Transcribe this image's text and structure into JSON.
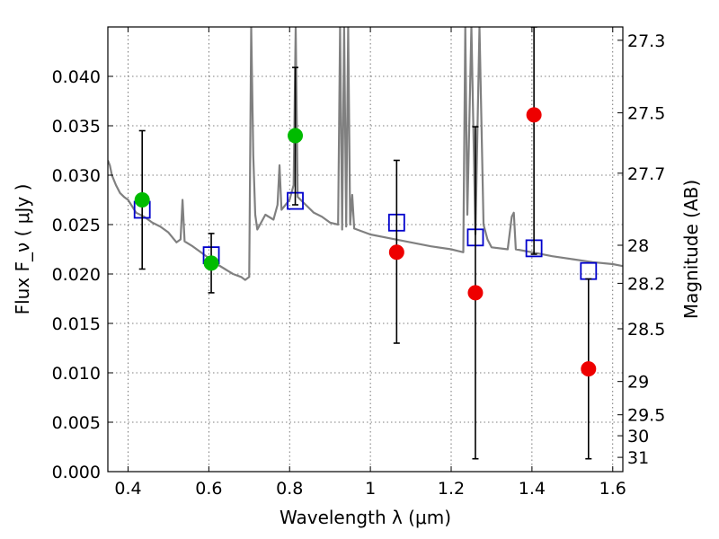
{
  "chart_data": {
    "type": "scatter",
    "xlabel": "Wavelength  λ (μm)",
    "ylabel": "Flux  F_ν  ( μJy )",
    "y2label": "Magnitude (AB)",
    "xlim": [
      0.35,
      1.625
    ],
    "ylim": [
      0.0,
      0.045
    ],
    "grid": true,
    "x_ticks": [
      0.4,
      0.6,
      0.8,
      1.0,
      1.2,
      1.4,
      1.6
    ],
    "x_tick_labels": [
      "0.4",
      "0.6",
      "0.8",
      "1",
      "1.2",
      "1.4",
      "1.6"
    ],
    "y_ticks": [
      0.0,
      0.005,
      0.01,
      0.015,
      0.02,
      0.025,
      0.03,
      0.035,
      0.04
    ],
    "y_tick_labels": [
      "0.000",
      "0.005",
      "0.010",
      "0.015",
      "0.020",
      "0.025",
      "0.030",
      "0.035",
      "0.040"
    ],
    "mag_ticks": [
      27.3,
      27.5,
      27.7,
      28,
      28.2,
      28.5,
      29,
      29.5,
      30,
      31
    ],
    "mag_tick_labels": [
      "27.3",
      "27.5",
      "27.7",
      "28",
      "28.2",
      "28.5",
      "29",
      "29.5",
      "30",
      "31"
    ],
    "colors": {
      "spectrum": "#808080",
      "model": "#0000cc",
      "detected": "#00bb00",
      "nondetected": "#ee0000",
      "errorbar": "#000000",
      "grid": "#555555"
    },
    "spectrum": {
      "x": [
        0.35,
        0.355,
        0.36,
        0.37,
        0.38,
        0.39,
        0.4,
        0.42,
        0.44,
        0.46,
        0.48,
        0.5,
        0.52,
        0.53,
        0.535,
        0.54,
        0.56,
        0.58,
        0.6,
        0.62,
        0.64,
        0.66,
        0.68,
        0.69,
        0.7,
        0.705,
        0.71,
        0.715,
        0.72,
        0.74,
        0.76,
        0.77,
        0.775,
        0.78,
        0.8,
        0.81,
        0.815,
        0.82,
        0.84,
        0.86,
        0.88,
        0.9,
        0.92,
        0.925,
        0.93,
        0.935,
        0.94,
        0.945,
        0.95,
        0.955,
        0.96,
        1.0,
        1.05,
        1.1,
        1.15,
        1.2,
        1.23,
        1.235,
        1.24,
        1.25,
        1.26,
        1.27,
        1.28,
        1.29,
        1.3,
        1.34,
        1.35,
        1.355,
        1.36,
        1.4,
        1.45,
        1.5,
        1.55,
        1.6,
        1.625
      ],
      "y": [
        0.0315,
        0.031,
        0.03,
        0.029,
        0.0282,
        0.0278,
        0.0275,
        0.0262,
        0.0258,
        0.0252,
        0.0248,
        0.0242,
        0.0232,
        0.0235,
        0.0275,
        0.0233,
        0.0228,
        0.0222,
        0.0216,
        0.021,
        0.0205,
        0.02,
        0.0197,
        0.0194,
        0.0197,
        0.045,
        0.032,
        0.026,
        0.0245,
        0.026,
        0.0255,
        0.027,
        0.031,
        0.0265,
        0.0275,
        0.029,
        0.045,
        0.0278,
        0.027,
        0.0262,
        0.0258,
        0.0252,
        0.025,
        0.045,
        0.0245,
        0.045,
        0.0248,
        0.045,
        0.025,
        0.028,
        0.0246,
        0.024,
        0.0236,
        0.0232,
        0.0228,
        0.0225,
        0.0222,
        0.045,
        0.026,
        0.045,
        0.024,
        0.045,
        0.025,
        0.0235,
        0.0227,
        0.0225,
        0.0258,
        0.0262,
        0.0225,
        0.0222,
        0.0218,
        0.0215,
        0.0212,
        0.021,
        0.0208
      ]
    },
    "series": [
      {
        "marker": "square",
        "points": [
          {
            "x": 0.435,
            "y": 0.0265
          },
          {
            "x": 0.606,
            "y": 0.0219
          },
          {
            "x": 0.814,
            "y": 0.0274
          },
          {
            "x": 1.065,
            "y": 0.0252
          },
          {
            "x": 1.26,
            "y": 0.0237
          },
          {
            "x": 1.405,
            "y": 0.0226
          },
          {
            "x": 1.54,
            "y": 0.0203
          }
        ]
      },
      {
        "marker": "circle",
        "color_key": "detected",
        "points": [
          {
            "x": 0.435,
            "y": 0.0275,
            "ylo": 0.0205,
            "yhi": 0.0345
          },
          {
            "x": 0.606,
            "y": 0.0211,
            "ylo": 0.0181,
            "yhi": 0.0241
          },
          {
            "x": 0.814,
            "y": 0.034,
            "ylo": 0.027,
            "yhi": 0.0409
          }
        ]
      },
      {
        "marker": "circle",
        "color_key": "nondetected",
        "points": [
          {
            "x": 1.065,
            "y": 0.0222,
            "ylo": 0.013,
            "yhi": 0.0315
          },
          {
            "x": 1.26,
            "y": 0.0181,
            "ylo": 0.0013,
            "yhi": 0.0349
          },
          {
            "x": 1.405,
            "y": 0.0361,
            "ylo": 0.022,
            "yhi": 0.045
          },
          {
            "x": 1.54,
            "y": 0.0104,
            "ylo": 0.0013,
            "yhi": 0.0195
          }
        ]
      }
    ]
  }
}
